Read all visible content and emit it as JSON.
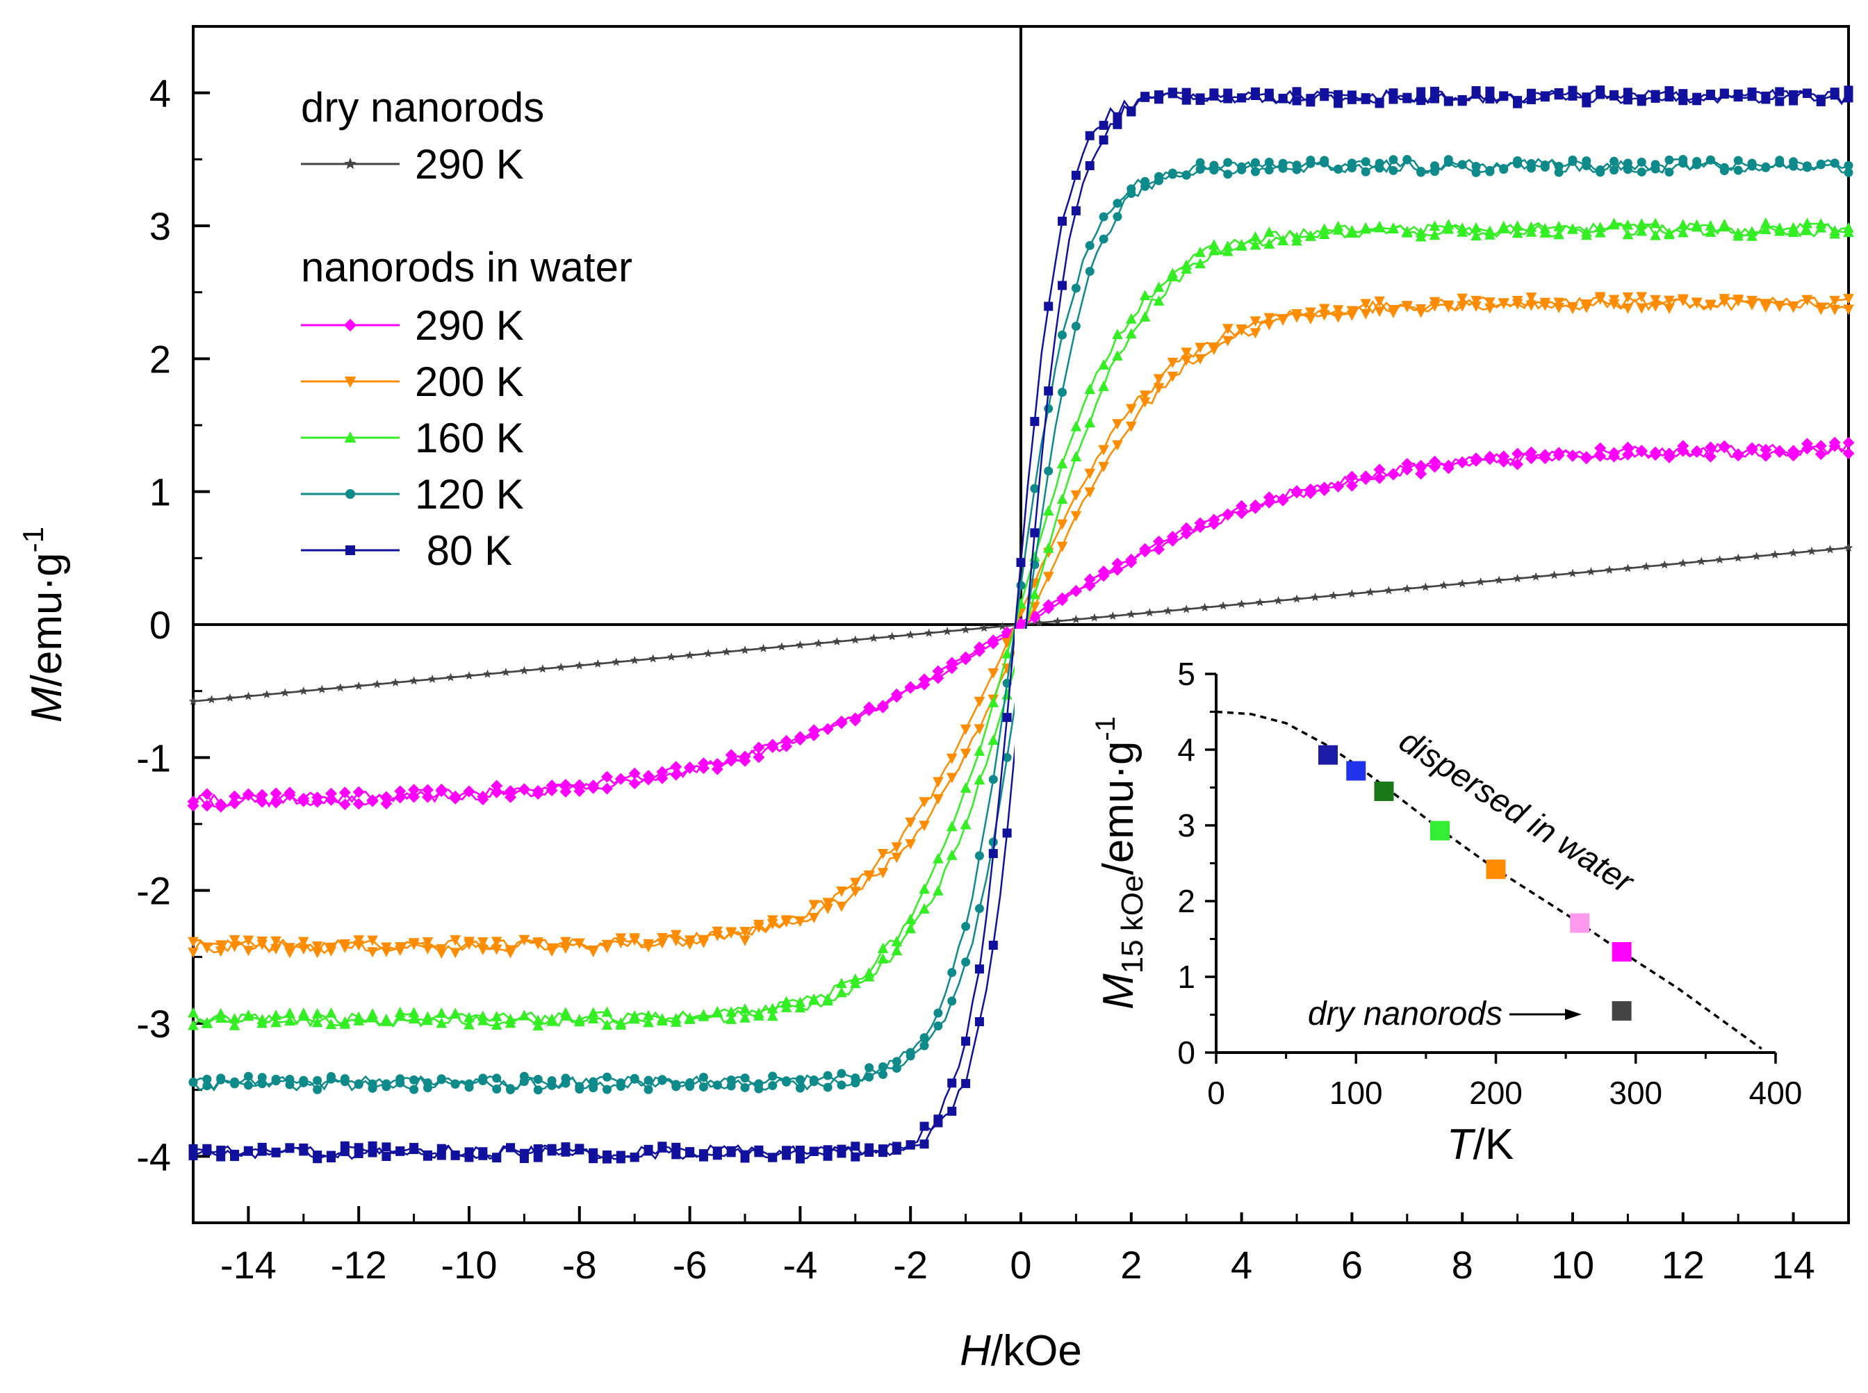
{
  "chart_data": {
    "type": "line",
    "main": {
      "xlabel_italic": "H",
      "xlabel_unit": "/kOe",
      "ylabel_italic": "M",
      "ylabel_unit": "/emu·g",
      "ylabel_exp": "-1",
      "xlim": [
        -15,
        15
      ],
      "ylim": [
        -4.5,
        4.5
      ],
      "xticks": [
        -14,
        -12,
        -10,
        -8,
        -6,
        -4,
        -2,
        0,
        2,
        4,
        6,
        8,
        10,
        12,
        14
      ],
      "yticks": [
        -4,
        -3,
        -2,
        -1,
        0,
        1,
        2,
        3,
        4
      ],
      "legend": {
        "group1_title": "dry nanorods",
        "group2_title": "nanorods in water"
      },
      "series": [
        {
          "id": "dry290",
          "name": "290 K",
          "group": "dry nanorods",
          "color": "#444444",
          "marker": "star",
          "model": "linear",
          "ms": 0.0385,
          "hc": 0
        },
        {
          "id": "w290",
          "name": "290 K",
          "group": "nanorods in water",
          "color": "#ff00ff",
          "marker": "diamond",
          "model": "tanh",
          "ms": 1.33,
          "hs": 5.2,
          "hc": 0.05
        },
        {
          "id": "w200",
          "name": "200 K",
          "group": "nanorods in water",
          "color": "#ff8c00",
          "marker": "triangle-down",
          "model": "tanh",
          "ms": 2.42,
          "hs": 2.6,
          "hc": 0.1
        },
        {
          "id": "w160",
          "name": "160 K",
          "group": "nanorods in water",
          "color": "#33ee22",
          "marker": "triangle-up",
          "model": "tanh",
          "ms": 2.97,
          "hs": 2.0,
          "hc": 0.1
        },
        {
          "id": "w120",
          "name": "120 K",
          "group": "nanorods in water",
          "color": "#0e8a8a",
          "marker": "circle",
          "model": "tanh",
          "ms": 3.45,
          "hs": 1.15,
          "hc": 0.1
        },
        {
          "id": "w80",
          "name": " 80 K",
          "group": "nanorods in water",
          "color": "#11119e",
          "marker": "square",
          "model": "tanh",
          "ms": 3.97,
          "hs": 0.85,
          "hc": 0.1
        }
      ]
    },
    "inset": {
      "type": "scatter",
      "xlabel_italic": "T",
      "xlabel_unit": "/K",
      "ylabel_italic": "M",
      "ylabel_sub": "15 kOe",
      "ylabel_unit": "/emu·g",
      "ylabel_exp": "-1",
      "xlim": [
        0,
        400
      ],
      "ylim": [
        0,
        5
      ],
      "xticks": [
        0,
        100,
        200,
        300,
        400
      ],
      "yticks": [
        0,
        1,
        2,
        3,
        4,
        5
      ],
      "points": [
        {
          "T": 80,
          "M": 3.93,
          "color": "#1c1ca8"
        },
        {
          "T": 100,
          "M": 3.72,
          "color": "#2233ee"
        },
        {
          "T": 120,
          "M": 3.45,
          "color": "#1a7a1a"
        },
        {
          "T": 160,
          "M": 2.93,
          "color": "#33ee33"
        },
        {
          "T": 200,
          "M": 2.42,
          "color": "#ff8c00"
        },
        {
          "T": 260,
          "M": 1.71,
          "color": "#ff99ee"
        },
        {
          "T": 290,
          "M": 1.33,
          "color": "#ff00ff"
        },
        {
          "T": 290,
          "M": 0.55,
          "color": "#444444"
        }
      ],
      "fit_curve": {
        "T": [
          0,
          25,
          50,
          80,
          100,
          120,
          160,
          200,
          260,
          290,
          330,
          360,
          390
        ],
        "M": [
          4.5,
          4.47,
          4.35,
          4.05,
          3.8,
          3.52,
          2.95,
          2.42,
          1.71,
          1.33,
          0.85,
          0.45,
          0.05
        ]
      },
      "annotation_water": "dispersed in water",
      "annotation_dry": "dry nanorods"
    }
  }
}
